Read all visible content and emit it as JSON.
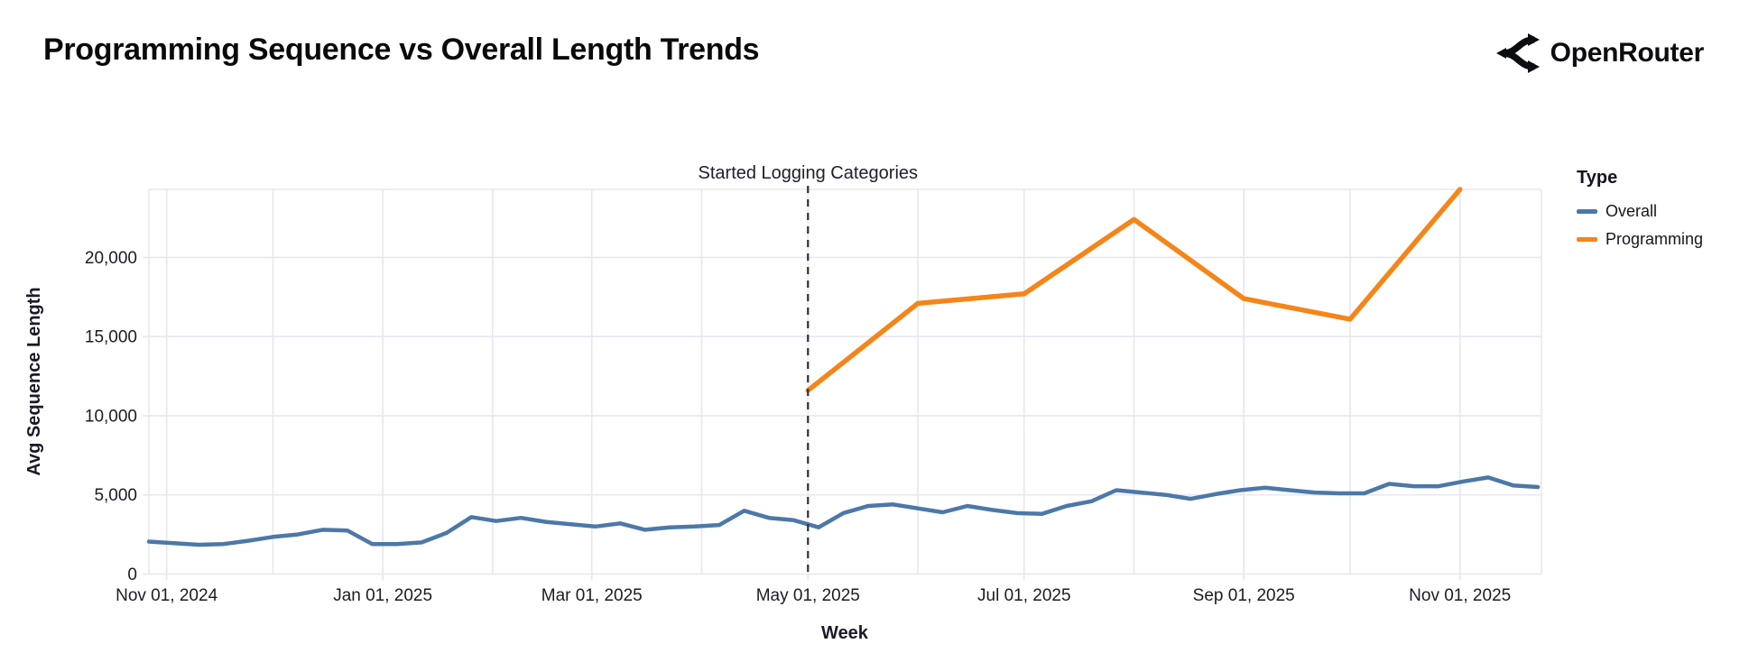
{
  "header": {
    "title": "Programming Sequence vs Overall Length Trends",
    "brand": "OpenRouter"
  },
  "chart_data": {
    "type": "line",
    "title": "Programming Sequence vs Overall Length Trends",
    "xlabel": "Week",
    "ylabel": "Avg Sequence Length",
    "grid": true,
    "annotation": {
      "label": "Started Logging Categories",
      "x_date": "May 01, 2025",
      "x_day": 186,
      "style": "vertical-dashed-line"
    },
    "x_axis": {
      "domain_days": [
        0,
        393
      ],
      "start_date": "Oct 27, 2024",
      "end_date": "Nov 24, 2025",
      "month_grid_days": [
        5,
        35,
        66,
        97,
        125,
        156,
        186,
        217,
        247,
        278,
        309,
        339,
        370
      ],
      "ticks": [
        {
          "day": 5,
          "label": "Nov 01, 2024"
        },
        {
          "day": 66,
          "label": "Jan 01, 2025"
        },
        {
          "day": 125,
          "label": "Mar 01, 2025"
        },
        {
          "day": 186,
          "label": "May 01, 2025"
        },
        {
          "day": 247,
          "label": "Jul 01, 2025"
        },
        {
          "day": 309,
          "label": "Sep 01, 2025"
        },
        {
          "day": 370,
          "label": "Nov 01, 2025"
        }
      ]
    },
    "y_axis": {
      "range": [
        0,
        24300
      ],
      "ticks": [
        0,
        5000,
        10000,
        15000,
        20000
      ],
      "tick_labels": [
        "0",
        "5,000",
        "10,000",
        "15,000",
        "20,000"
      ]
    },
    "legend": {
      "title": "Type",
      "position": "right",
      "items": [
        {
          "label": "Overall",
          "color": "#4c78a8"
        },
        {
          "label": "Programming",
          "color": "#f58518"
        }
      ]
    },
    "series": [
      {
        "name": "Overall",
        "color": "#4c78a8",
        "stroke_width": 4.5,
        "x_days": [
          0,
          7,
          14,
          21,
          28,
          35,
          42,
          49,
          56,
          63,
          70,
          77,
          84,
          91,
          98,
          105,
          112,
          119,
          126,
          133,
          140,
          147,
          154,
          161,
          168,
          175,
          182,
          189,
          196,
          203,
          210,
          217,
          224,
          231,
          238,
          245,
          252,
          259,
          266,
          273,
          280,
          287,
          294,
          301,
          308,
          315,
          322,
          329,
          336,
          343,
          350,
          357,
          364,
          371,
          378,
          385,
          392
        ],
        "dates": [
          "Oct 27, 2024",
          "Nov 03, 2024",
          "Nov 10, 2024",
          "Nov 17, 2024",
          "Nov 24, 2024",
          "Dec 01, 2024",
          "Dec 08, 2024",
          "Dec 15, 2024",
          "Dec 22, 2024",
          "Dec 29, 2024",
          "Jan 05, 2025",
          "Jan 12, 2025",
          "Jan 19, 2025",
          "Jan 26, 2025",
          "Feb 02, 2025",
          "Feb 09, 2025",
          "Feb 16, 2025",
          "Feb 23, 2025",
          "Mar 02, 2025",
          "Mar 09, 2025",
          "Mar 16, 2025",
          "Mar 23, 2025",
          "Mar 30, 2025",
          "Apr 06, 2025",
          "Apr 13, 2025",
          "Apr 20, 2025",
          "Apr 27, 2025",
          "May 04, 2025",
          "May 11, 2025",
          "May 18, 2025",
          "May 25, 2025",
          "Jun 01, 2025",
          "Jun 08, 2025",
          "Jun 15, 2025",
          "Jun 22, 2025",
          "Jun 29, 2025",
          "Jul 06, 2025",
          "Jul 13, 2025",
          "Jul 20, 2025",
          "Jul 27, 2025",
          "Aug 03, 2025",
          "Aug 10, 2025",
          "Aug 17, 2025",
          "Aug 24, 2025",
          "Aug 31, 2025",
          "Sep 07, 2025",
          "Sep 14, 2025",
          "Sep 21, 2025",
          "Sep 28, 2025",
          "Oct 05, 2025",
          "Oct 12, 2025",
          "Oct 19, 2025",
          "Oct 26, 2025",
          "Nov 02, 2025",
          "Nov 09, 2025",
          "Nov 16, 2025",
          "Nov 23, 2025"
        ],
        "values": [
          2050,
          1950,
          1850,
          1900,
          2100,
          2350,
          2500,
          2800,
          2750,
          1900,
          1900,
          2000,
          2600,
          3600,
          3350,
          3550,
          3300,
          3150,
          3000,
          3200,
          2800,
          2950,
          3000,
          3100,
          4000,
          3550,
          3400,
          2950,
          3850,
          4300,
          4400,
          4150,
          3900,
          4300,
          4050,
          3850,
          3800,
          4300,
          4600,
          5300,
          5150,
          5000,
          4750,
          5050,
          5300,
          5450,
          5300,
          5150,
          5100,
          5100,
          5700,
          5550,
          5550,
          5850,
          6100,
          5600,
          5500
        ]
      },
      {
        "name": "Programming",
        "color": "#f58518",
        "stroke_width": 5.5,
        "x_days": [
          186,
          217,
          247,
          278,
          309,
          339,
          370
        ],
        "dates": [
          "May 01, 2025",
          "Jun 01, 2025",
          "Jul 01, 2025",
          "Aug 01, 2025",
          "Sep 01, 2025",
          "Oct 01, 2025",
          "Nov 01, 2025"
        ],
        "values": [
          11600,
          17100,
          17700,
          22400,
          17400,
          16100,
          24300
        ]
      }
    ],
    "style": {
      "grid_color": "#e7e7ef",
      "axis_text_color": "#1b1b27",
      "annotation_line_color": "#2e2e38",
      "background": "#ffffff"
    }
  }
}
